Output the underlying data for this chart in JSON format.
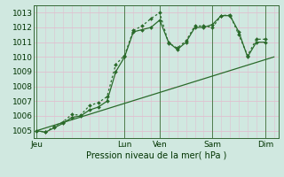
{
  "bg_color": "#d0e8e0",
  "grid_color": "#e0c0d0",
  "line_color": "#2a6a2a",
  "title": "Pression niveau de la mer( hPa )",
  "ylim": [
    1004.5,
    1013.5
  ],
  "yticks": [
    1005,
    1006,
    1007,
    1008,
    1009,
    1010,
    1011,
    1012,
    1013
  ],
  "day_labels": [
    "Jeu",
    "Lun",
    "Ven",
    "Sam",
    "Dim"
  ],
  "day_positions": [
    0,
    10,
    14,
    20,
    26
  ],
  "xlim": [
    -0.3,
    27.5
  ],
  "series1_x": [
    0,
    1,
    2,
    3,
    4,
    5,
    6,
    7,
    8,
    9,
    10,
    11,
    12,
    13,
    14,
    15,
    16,
    17,
    18,
    19,
    20,
    21,
    22,
    23,
    24,
    25,
    26
  ],
  "series1_y": [
    1005.0,
    1004.9,
    1005.2,
    1005.5,
    1005.9,
    1006.0,
    1006.4,
    1006.6,
    1007.0,
    1009.0,
    1010.0,
    1011.7,
    1011.85,
    1012.0,
    1012.5,
    1011.0,
    1010.5,
    1011.0,
    1012.0,
    1012.0,
    1012.2,
    1012.8,
    1012.8,
    1011.7,
    1010.0,
    1011.0,
    1011.0
  ],
  "series2_x": [
    0,
    1,
    2,
    3,
    4,
    5,
    6,
    7,
    8,
    9,
    10,
    11,
    12,
    13,
    14,
    15,
    16,
    17,
    18,
    19,
    20,
    21,
    22,
    23,
    24,
    25,
    26
  ],
  "series2_y": [
    1005.0,
    1004.9,
    1005.3,
    1005.6,
    1006.1,
    1006.05,
    1006.7,
    1006.9,
    1007.3,
    1009.5,
    1010.1,
    1011.8,
    1012.1,
    1012.6,
    1013.0,
    1010.95,
    1010.6,
    1011.1,
    1012.1,
    1012.1,
    1012.0,
    1012.8,
    1012.85,
    1011.5,
    1010.1,
    1011.2,
    1011.2
  ],
  "series3_x": [
    0,
    27
  ],
  "series3_y": [
    1005.0,
    1010.0
  ]
}
